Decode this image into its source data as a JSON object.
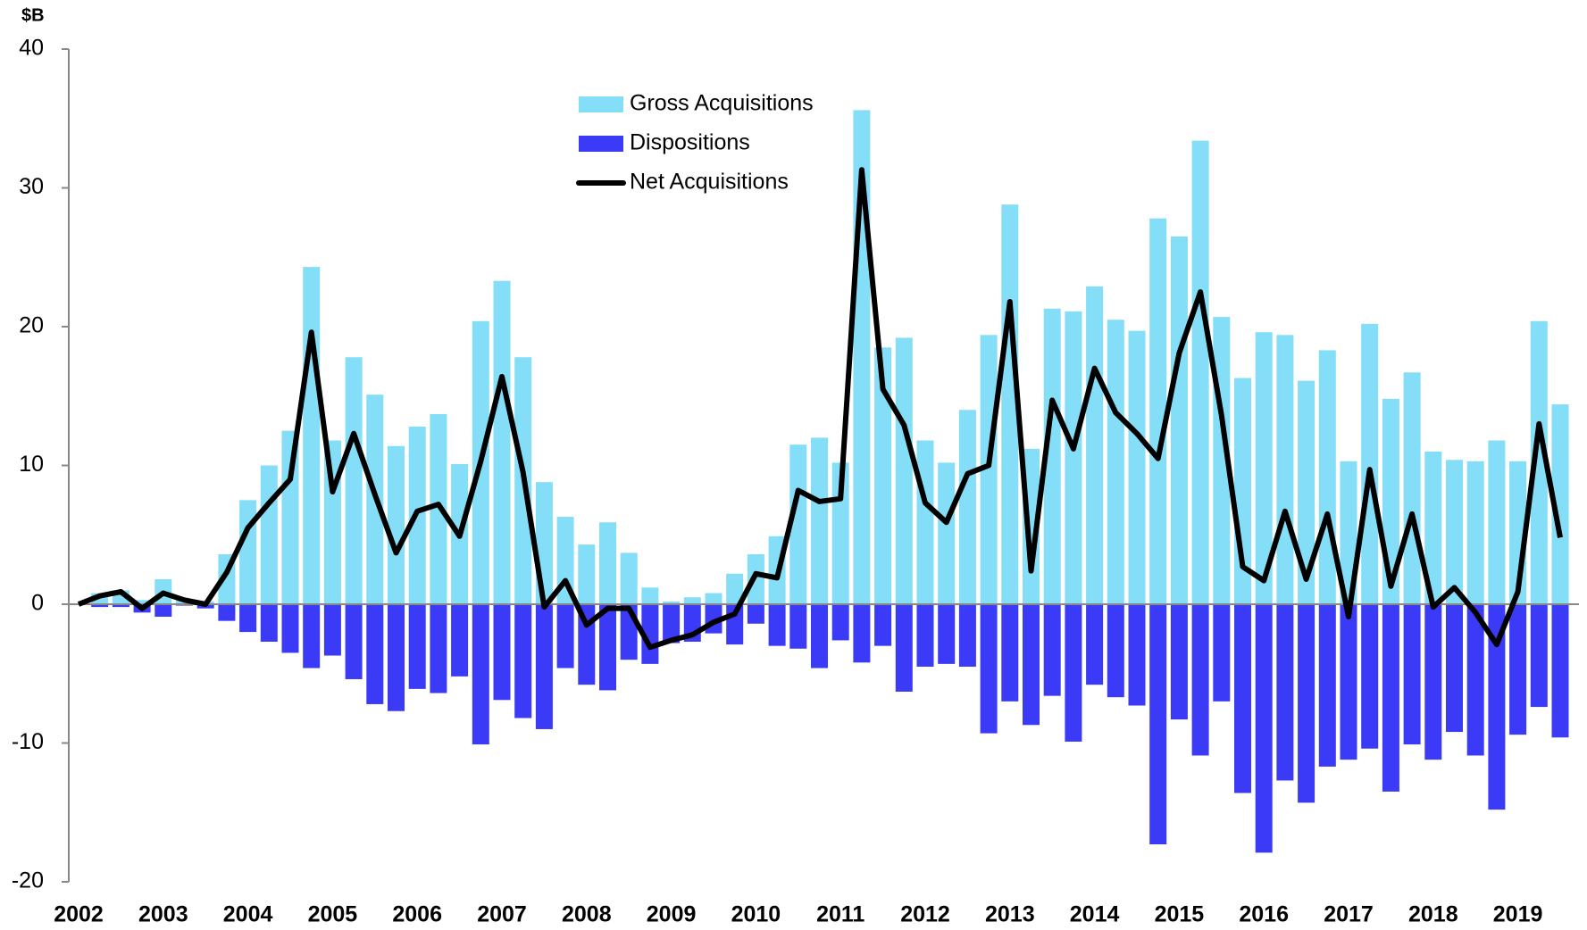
{
  "chart_data": {
    "type": "bar",
    "y_label": "$B",
    "categories": [
      "2002",
      null,
      null,
      null,
      "2003",
      null,
      null,
      null,
      "2004",
      null,
      null,
      null,
      "2005",
      null,
      null,
      null,
      "2006",
      null,
      null,
      null,
      "2007",
      null,
      null,
      null,
      "2008",
      null,
      null,
      null,
      "2009",
      null,
      null,
      null,
      "2010",
      null,
      null,
      null,
      "2011",
      null,
      null,
      null,
      "2012",
      null,
      null,
      null,
      "2013",
      null,
      null,
      null,
      "2014",
      null,
      null,
      null,
      "2015",
      null,
      null,
      null,
      "2016",
      null,
      null,
      null,
      "2017",
      null,
      null,
      null,
      "2018",
      null,
      null,
      null,
      "2019",
      null,
      null
    ],
    "series": [
      {
        "name": "Gross Acquisitions",
        "type": "bar",
        "color": "#84def7",
        "values": [
          0,
          0.8,
          1.0,
          0.3,
          1.8,
          0.3,
          0.2,
          3.6,
          7.5,
          10.0,
          12.5,
          24.3,
          11.8,
          17.8,
          15.1,
          11.4,
          12.8,
          13.7,
          10.1,
          20.4,
          23.3,
          17.8,
          8.8,
          6.3,
          4.3,
          5.9,
          3.7,
          1.2,
          0.2,
          0.5,
          0.8,
          2.2,
          3.6,
          4.9,
          11.5,
          12.0,
          10.2,
          35.6,
          18.5,
          19.2,
          11.8,
          10.2,
          14.0,
          19.4,
          28.8,
          11.2,
          21.3,
          21.1,
          22.9,
          20.5,
          19.7,
          27.8,
          26.5,
          33.4,
          20.7,
          16.3,
          19.6,
          19.4,
          16.1,
          18.3,
          10.3,
          20.2,
          14.8,
          16.7,
          11.0,
          10.4,
          10.3,
          11.8,
          10.3,
          20.4,
          14.4
        ]
      },
      {
        "name": "Dispositions",
        "type": "bar",
        "color": "#3a3af7",
        "values": [
          0,
          -0.2,
          -0.2,
          -0.6,
          -0.9,
          -0.1,
          -0.3,
          -1.2,
          -2.0,
          -2.7,
          -3.5,
          -4.6,
          -3.7,
          -5.4,
          -7.2,
          -7.7,
          -6.1,
          -6.4,
          -5.2,
          -10.1,
          -6.9,
          -8.2,
          -9.0,
          -4.6,
          -5.8,
          -6.2,
          -4.0,
          -4.3,
          -2.8,
          -2.7,
          -2.1,
          -2.9,
          -1.4,
          -3.0,
          -3.2,
          -4.6,
          -2.6,
          -4.2,
          -3.0,
          -6.3,
          -4.5,
          -4.3,
          -4.5,
          -9.3,
          -7.0,
          -8.7,
          -6.6,
          -9.9,
          -5.8,
          -6.7,
          -7.3,
          -17.3,
          -8.3,
          -10.9,
          -7.0,
          -13.6,
          -17.9,
          -12.7,
          -14.3,
          -11.7,
          -11.2,
          -10.4,
          -13.5,
          -10.1,
          -11.2,
          -9.2,
          -10.9,
          -14.8,
          -9.4,
          -7.4,
          -9.6
        ]
      },
      {
        "name": "Net Acquisitions",
        "type": "line",
        "color": "#000000",
        "values": [
          0,
          0.6,
          0.9,
          -0.3,
          0.8,
          0.3,
          0,
          2.3,
          5.5,
          7.3,
          9.0,
          19.6,
          8.1,
          12.3,
          7.9,
          3.7,
          6.7,
          7.2,
          4.9,
          10.3,
          16.4,
          9.5,
          -0.2,
          1.7,
          -1.5,
          -0.3,
          -0.3,
          -3.1,
          -2.6,
          -2.2,
          -1.3,
          -0.7,
          2.2,
          1.9,
          8.2,
          7.4,
          7.6,
          31.3,
          15.5,
          12.9,
          7.3,
          5.9,
          9.4,
          10.0,
          21.8,
          2.4,
          14.7,
          11.2,
          17.0,
          13.8,
          12.3,
          10.5,
          18.1,
          22.5,
          13.6,
          2.7,
          1.7,
          6.7,
          1.8,
          6.5,
          -0.9,
          9.7,
          1.3,
          6.5,
          -0.2,
          1.2,
          -0.6,
          -2.9,
          0.9,
          13.0,
          4.8
        ]
      }
    ],
    "ylim": [
      -20,
      40
    ],
    "yticks": [
      -20,
      -10,
      0,
      10,
      20,
      30,
      40
    ],
    "legend": "top"
  }
}
